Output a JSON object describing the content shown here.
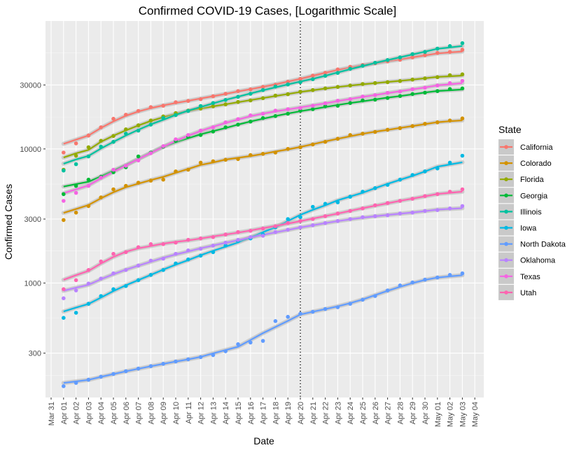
{
  "chart_data": {
    "type": "scatter",
    "title": "Confirmed COVID-19 Cases, [Logarithmic Scale]",
    "xlabel": "Date",
    "ylabel": "Confirmed Cases",
    "y_scale": "log",
    "ylim": [
      140,
      90000
    ],
    "xlim": [
      "Mar 30.3",
      "May 04.7"
    ],
    "grid": true,
    "legend_position": "right",
    "legend_title": "State",
    "x_tick_labels": [
      "Mar 31",
      "Apr 01",
      "Apr 02",
      "Apr 03",
      "Apr 04",
      "Apr 05",
      "Apr 06",
      "Apr 07",
      "Apr 08",
      "Apr 09",
      "Apr 10",
      "Apr 11",
      "Apr 12",
      "Apr 13",
      "Apr 14",
      "Apr 15",
      "Apr 16",
      "Apr 17",
      "Apr 18",
      "Apr 19",
      "Apr 20",
      "Apr 21",
      "Apr 22",
      "Apr 23",
      "Apr 24",
      "Apr 25",
      "Apr 26",
      "Apr 27",
      "Apr 28",
      "Apr 29",
      "Apr 30",
      "May 01",
      "May 02",
      "May 03",
      "May 04"
    ],
    "y_ticks": [
      300,
      1000,
      3000,
      10000,
      30000
    ],
    "y_tick_labels": [
      "300",
      "1000",
      "3000",
      "10000",
      "30000"
    ],
    "reference_line_date": "Apr 20",
    "dates": [
      "Apr 01",
      "Apr 02",
      "Apr 03",
      "Apr 04",
      "Apr 05",
      "Apr 06",
      "Apr 07",
      "Apr 08",
      "Apr 09",
      "Apr 10",
      "Apr 11",
      "Apr 12",
      "Apr 13",
      "Apr 14",
      "Apr 15",
      "Apr 16",
      "Apr 17",
      "Apr 18",
      "Apr 19",
      "Apr 20",
      "Apr 21",
      "Apr 22",
      "Apr 23",
      "Apr 24",
      "Apr 25",
      "Apr 26",
      "Apr 27",
      "Apr 28",
      "Apr 29",
      "Apr 30",
      "May 01",
      "May 02",
      "May 03"
    ],
    "series": [
      {
        "name": "California",
        "color": "#F8766D",
        "values": [
          9400,
          11000,
          12600,
          14500,
          16800,
          18000,
          19200,
          20500,
          21000,
          22300,
          22800,
          23500,
          24700,
          25800,
          27000,
          27800,
          29000,
          30100,
          31700,
          33300,
          35200,
          37000,
          39200,
          41000,
          42300,
          43500,
          45000,
          46200,
          48200,
          50000,
          52000,
          53000,
          54900
        ]
      },
      {
        "name": "Colorado",
        "color": "#D39200",
        "values": [
          2950,
          3350,
          3750,
          4350,
          5000,
          5300,
          5600,
          5800,
          5900,
          6800,
          7000,
          7900,
          8100,
          8300,
          8400,
          9000,
          9200,
          9400,
          10000,
          10300,
          10800,
          11300,
          11900,
          12700,
          13000,
          13400,
          13900,
          14300,
          14800,
          15400,
          15800,
          16300,
          16900
        ]
      },
      {
        "name": "Florida",
        "color": "#93AA00",
        "values": [
          7000,
          8900,
          10300,
          11500,
          12500,
          14000,
          15000,
          16300,
          17500,
          18500,
          19300,
          20000,
          20800,
          21500,
          22400,
          23000,
          23900,
          25000,
          25600,
          26700,
          27500,
          28300,
          29000,
          29700,
          30500,
          31000,
          31500,
          32100,
          32900,
          33600,
          34300,
          35500,
          36000
        ]
      },
      {
        "name": "Georgia",
        "color": "#00BA38",
        "values": [
          4600,
          5300,
          5900,
          6200,
          6700,
          7300,
          8800,
          9400,
          10400,
          11500,
          12300,
          12700,
          13500,
          14500,
          15200,
          16000,
          17000,
          17600,
          18300,
          19300,
          19800,
          20800,
          21000,
          22000,
          23000,
          23300,
          24000,
          24800,
          25700,
          26300,
          27000,
          28000,
          28300
        ]
      },
      {
        "name": "Illinois",
        "color": "#00C19F",
        "values": [
          6900,
          7700,
          8800,
          10400,
          11300,
          13000,
          13700,
          15200,
          17000,
          17900,
          19200,
          20900,
          22000,
          23200,
          24500,
          25800,
          27500,
          29200,
          30300,
          31500,
          33100,
          35100,
          36900,
          39600,
          41700,
          43900,
          46000,
          48100,
          51000,
          52900,
          56000,
          58500,
          61500
        ]
      },
      {
        "name": "Iowa",
        "color": "#00B9E3",
        "values": [
          550,
          600,
          700,
          800,
          900,
          950,
          1050,
          1150,
          1250,
          1400,
          1500,
          1600,
          1700,
          1900,
          2050,
          2150,
          2300,
          2600,
          3000,
          3100,
          3700,
          3900,
          4000,
          4400,
          4800,
          5100,
          5400,
          5900,
          6400,
          6800,
          7150,
          7900,
          8900
        ]
      },
      {
        "name": "North Dakota",
        "color": "#619CFF",
        "values": [
          170,
          180,
          190,
          200,
          210,
          220,
          230,
          240,
          250,
          260,
          270,
          280,
          290,
          310,
          350,
          360,
          370,
          520,
          560,
          590,
          610,
          640,
          660,
          700,
          750,
          800,
          880,
          960,
          1010,
          1060,
          1100,
          1150,
          1180
        ]
      },
      {
        "name": "Oklahoma",
        "color": "#B983FF",
        "values": [
          770,
          880,
          990,
          1080,
          1180,
          1250,
          1350,
          1470,
          1520,
          1650,
          1750,
          1800,
          1900,
          2000,
          2100,
          2200,
          2250,
          2400,
          2500,
          2600,
          2700,
          2800,
          2900,
          3000,
          3100,
          3150,
          3200,
          3300,
          3350,
          3450,
          3500,
          3600,
          3750
        ]
      },
      {
        "name": "Texas",
        "color": "#F564E3",
        "values": [
          4100,
          4700,
          5300,
          6100,
          7000,
          7500,
          8200,
          9300,
          10500,
          11800,
          12700,
          13700,
          14500,
          15800,
          16700,
          17800,
          18300,
          19300,
          19800,
          20200,
          21000,
          21900,
          22900,
          23500,
          24600,
          25200,
          26200,
          26800,
          27900,
          28600,
          29700,
          31000,
          32200
        ]
      },
      {
        "name": "Utah",
        "color": "#FF64B0",
        "values": [
          900,
          1050,
          1250,
          1450,
          1650,
          1700,
          1850,
          1950,
          1950,
          2000,
          2100,
          2150,
          2200,
          2300,
          2400,
          2450,
          2550,
          2650,
          2800,
          2900,
          3000,
          3150,
          3300,
          3450,
          3600,
          3800,
          3950,
          4100,
          4250,
          4450,
          4600,
          4800,
          5000
        ]
      }
    ]
  }
}
